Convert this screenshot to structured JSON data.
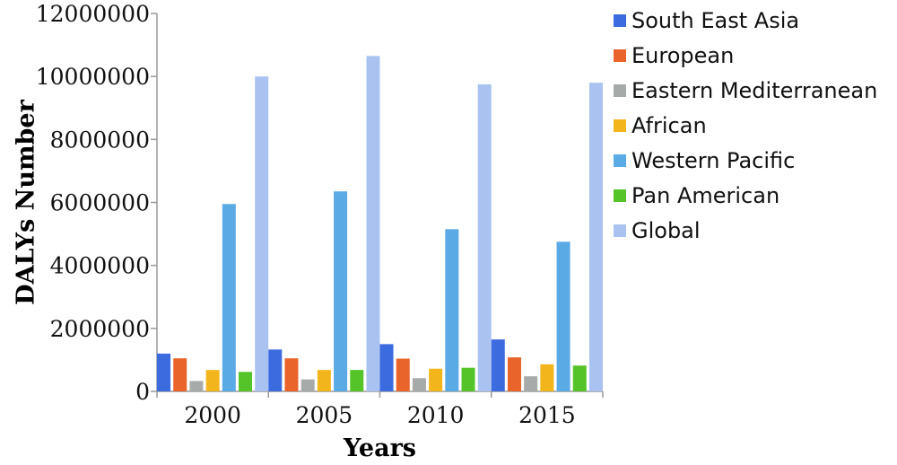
{
  "chart_data": {
    "type": "bar",
    "title": "",
    "xlabel": "Years",
    "ylabel": "DALYs Number",
    "categories": [
      "2000",
      "2005",
      "2010",
      "2015"
    ],
    "ylim": [
      0,
      12000000
    ],
    "yticks": [
      0,
      2000000,
      4000000,
      6000000,
      8000000,
      10000000,
      12000000
    ],
    "grid": false,
    "legend_position": "right",
    "series": [
      {
        "name": "South East Asia",
        "color": "#3c6be0",
        "values": [
          1200000,
          1330000,
          1500000,
          1650000
        ]
      },
      {
        "name": "European",
        "color": "#e8642a",
        "values": [
          1050000,
          1050000,
          1040000,
          1080000
        ]
      },
      {
        "name": "Eastern Mediterranean",
        "color": "#a6aaa8",
        "values": [
          330000,
          380000,
          420000,
          480000
        ]
      },
      {
        "name": "African",
        "color": "#f2b51c",
        "values": [
          680000,
          680000,
          720000,
          860000
        ]
      },
      {
        "name": "Western Pacific",
        "color": "#5aaae6",
        "values": [
          5950000,
          6350000,
          5150000,
          4750000
        ]
      },
      {
        "name": "Pan American",
        "color": "#55c428",
        "values": [
          620000,
          680000,
          750000,
          820000
        ]
      },
      {
        "name": "Global",
        "color": "#a9c2f0",
        "values": [
          10000000,
          10650000,
          9750000,
          9800000
        ]
      }
    ]
  }
}
